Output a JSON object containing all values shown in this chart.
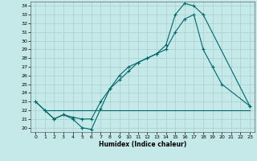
{
  "xlabel": "Humidex (Indice chaleur)",
  "bg_color": "#c5e8e8",
  "grid_color": "#a8d0d0",
  "line_color": "#006868",
  "xlim": [
    -0.5,
    23.5
  ],
  "ylim": [
    19.5,
    34.5
  ],
  "yticks": [
    20,
    21,
    22,
    23,
    24,
    25,
    26,
    27,
    28,
    29,
    30,
    31,
    32,
    33,
    34
  ],
  "xticks": [
    0,
    1,
    2,
    3,
    4,
    5,
    6,
    7,
    8,
    9,
    10,
    11,
    12,
    13,
    14,
    15,
    16,
    17,
    18,
    19,
    20,
    21,
    22,
    23
  ],
  "line1_x": [
    0,
    1,
    2,
    3,
    4,
    5,
    6,
    7,
    8,
    9,
    10,
    11,
    12,
    13,
    14,
    15,
    16,
    17,
    18,
    23
  ],
  "line1_y": [
    23,
    22,
    21,
    21.5,
    21,
    20,
    19.8,
    22.2,
    24.5,
    26,
    27,
    27.5,
    28,
    28.5,
    29.5,
    33,
    34.3,
    34,
    33,
    22.5
  ],
  "line2_x": [
    1,
    2,
    3,
    4,
    5,
    6,
    7,
    8,
    9,
    10,
    11,
    12,
    13,
    14,
    15,
    16,
    17,
    18,
    19,
    20,
    21,
    22,
    23
  ],
  "line2_y": [
    22,
    22,
    22,
    22,
    22,
    22,
    22,
    22,
    22,
    22,
    22,
    22,
    22,
    22,
    22,
    22,
    22,
    22,
    22,
    22,
    22,
    22,
    22
  ],
  "line3_x": [
    0,
    1,
    2,
    3,
    4,
    5,
    6,
    7,
    8,
    9,
    10,
    11,
    12,
    13,
    14,
    15,
    16,
    17,
    18,
    19,
    20,
    23
  ],
  "line3_y": [
    23,
    22,
    21,
    21.5,
    21.2,
    21,
    21,
    23,
    24.5,
    25.5,
    26.5,
    27.5,
    28,
    28.5,
    29,
    31,
    32.5,
    33,
    29,
    27,
    25,
    22.5
  ]
}
